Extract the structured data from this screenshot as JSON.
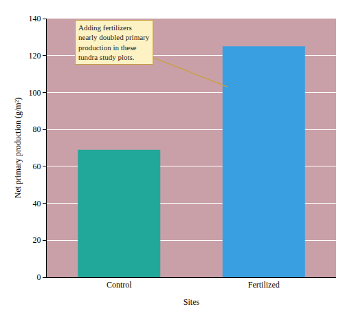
{
  "chart_data": {
    "type": "bar",
    "x_label": "Sites",
    "y_label": "Net primary production (g/m²)",
    "categories": [
      "Control",
      "Fertilized"
    ],
    "values": [
      69,
      125
    ],
    "colors": [
      "#22a89a",
      "#3a9fe0"
    ],
    "ylim": [
      0,
      140
    ],
    "yticks": [
      0,
      20,
      40,
      60,
      80,
      100,
      120,
      140
    ],
    "grid": true,
    "annotations": [
      {
        "text": "Adding fertilizers nearly doubled primary production in these tundra study plots.",
        "category": "Fertilized",
        "value": 103
      }
    ]
  }
}
